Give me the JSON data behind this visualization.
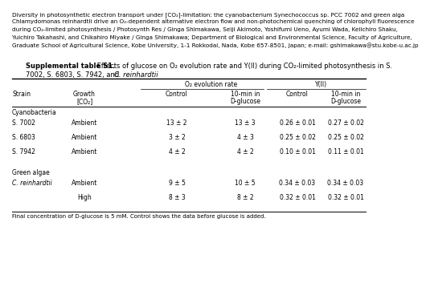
{
  "header_line1": "Diversity in photosynthetic electron transport under [CO₂]-limitation: the cyanobacterium Synechococcus sp. PCC 7002 and green alga",
  "header_line2": "Chlamydomonas reinhardtii drive an O₂-dependent alternative electron flow and non-photochemical quenching of chlorophyll fluorescence",
  "header_line3": "during CO₂-limited photosynthesis / Photosynth Res / Ginga Shimakawa, Seiji Akimoto, Yoshifumi Ueno, Ayumi Wada, Keiichiro Shaku,",
  "header_line4": "Yuichiro Takahashi, and Chikahiro Miyake / Ginga Shimakawa; Department of Biological and Environmental Science, Faculty of Agriculture,",
  "header_line5": "Graduate School of Agricultural Science, Kobe University, 1-1 Rokkodai, Nada, Kobe 657-8501, Japan; e-mail: gshimakawa@stu.kobe-u.ac.jp",
  "table_title_bold": "Supplemental table S1.",
  "table_title_normal": " Effects of glucose on O₂ evolution rate and Y(II) during CO₂-limited photosynthesis in S.",
  "table_subtitle_pre": "7002, S. 6803, S. 7942, and ",
  "table_subtitle_italic": "C. reinhardtii",
  "cyano_label": "Cyanobacteria",
  "rows_cyano": [
    [
      "S. 7002",
      "Ambient",
      "13 ± 2",
      "13 ± 3",
      "0.26 ± 0.01",
      "0.27 ± 0.02"
    ],
    [
      "S. 6803",
      "Ambient",
      "3 ± 2",
      "4 ± 3",
      "0.25 ± 0.02",
      "0.25 ± 0.02"
    ],
    [
      "S. 7942",
      "Ambient",
      "4 ± 2",
      "4 ± 2",
      "0.10 ± 0.01",
      "0.11 ± 0.01"
    ]
  ],
  "algae_label": "Green algae",
  "rows_algae": [
    [
      "C. reinhardtii",
      "Ambient",
      "9 ± 5",
      "10 ± 5",
      "0.34 ± 0.03",
      "0.34 ± 0.03"
    ],
    [
      "",
      "High",
      "8 ± 3",
      "8 ± 2",
      "0.32 ± 0.01",
      "0.32 ± 0.01"
    ]
  ],
  "footnote": "Final concentration of D-glucose is 5 mM. Control shows the data before glucose is added.",
  "bg_color": "#ffffff",
  "header_italic_species1": "Synechococcus sp.",
  "header_italic_species2": "Chlamydomonas reinhardtii"
}
